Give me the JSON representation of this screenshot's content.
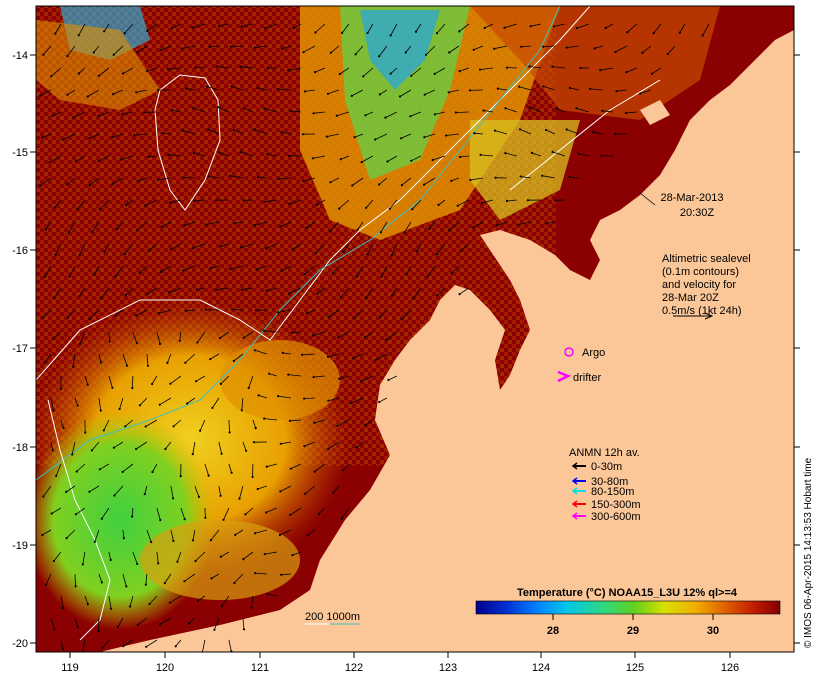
{
  "map": {
    "lon_ticks": [
      "119",
      "120",
      "121",
      "122",
      "123",
      "124",
      "125",
      "126"
    ],
    "lat_ticks": [
      "-14",
      "-15",
      "-16",
      "-17",
      "-18",
      "-19",
      "-20"
    ],
    "colors": {
      "land": "#fbc798",
      "warm": "#8b0000",
      "mid": "#c84a00",
      "orange": "#e8a000",
      "yellow": "#e8d020",
      "green": "#50c840",
      "cyan": "#30a8d0",
      "blue": "#1040c0"
    }
  },
  "datetime": {
    "date": "28-Mar-2013",
    "time": "20:30Z"
  },
  "altimetry_note": {
    "lines": [
      "Altimetric sealevel",
      "(0.1m contours)",
      "and velocity for",
      "28-Mar 20Z",
      "0.5m/s (1kt 24h)"
    ]
  },
  "markers": {
    "argo": "Argo",
    "drifter": "drifter"
  },
  "anmn_legend": {
    "title": "ANMN 12h av.",
    "items": [
      {
        "label": "0-30m",
        "color": "#000000"
      },
      {
        "label": "30-80m",
        "color": "#0000ff"
      },
      {
        "label": "80-150m",
        "color": "#00e0e0"
      },
      {
        "label": "150-300m",
        "color": "#ff0000"
      },
      {
        "label": "300-600m",
        "color": "#ff00ff"
      }
    ]
  },
  "isobath_label": "200  1000m",
  "colorbar": {
    "title": "Temperature (°C) NOAA15_L3U 12% ql>=4",
    "ticks": [
      "28",
      "29",
      "30"
    ]
  },
  "credit": "© IMOS 06-Apr-2015 14:13:53 Hobart time"
}
